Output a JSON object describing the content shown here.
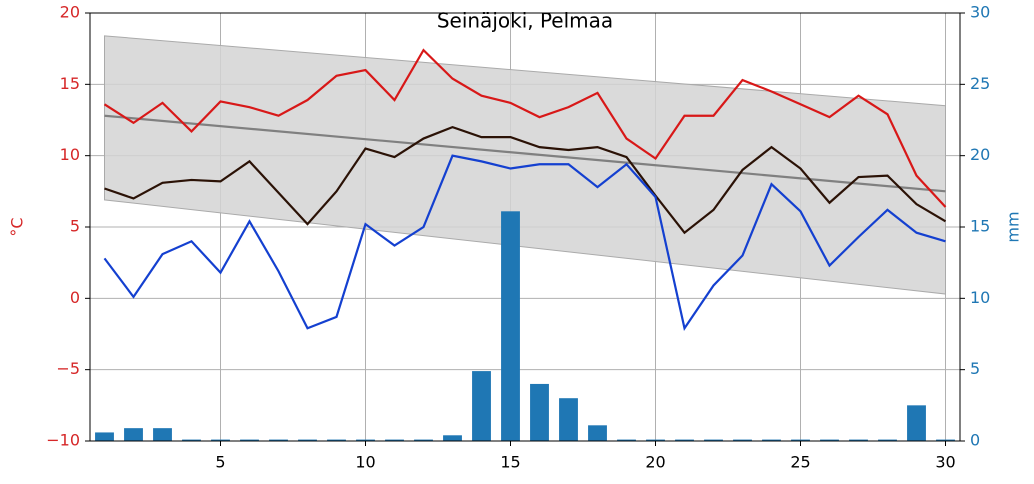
{
  "chart_data": {
    "type": "combo",
    "title": "Seinäjoki, Pelmaa",
    "ylabel": "°C",
    "y2label": "mm",
    "ylabel_color": "#d62728",
    "y2label_color": "#1f77b4",
    "xlim": [
      0.5,
      30.5
    ],
    "xticks": [
      5,
      10,
      15,
      20,
      25,
      30
    ],
    "ylim": [
      -10,
      20
    ],
    "yticks": [
      {
        "value": -10,
        "label": "−10"
      },
      {
        "value": -5,
        "label": "−5"
      },
      0,
      5,
      10,
      15,
      20
    ],
    "y2lim": [
      0,
      30
    ],
    "y2ticks": [
      0,
      5,
      10,
      15,
      20,
      25,
      30
    ],
    "grid": true,
    "x": [
      1,
      2,
      3,
      4,
      5,
      6,
      7,
      8,
      9,
      10,
      11,
      12,
      13,
      14,
      15,
      16,
      17,
      18,
      19,
      20,
      21,
      22,
      23,
      24,
      25,
      26,
      27,
      28,
      29,
      30
    ],
    "series": [
      {
        "type": "band",
        "x": [
          1,
          30
        ],
        "upper": [
          18.4,
          13.5
        ],
        "lower": [
          6.9,
          0.3
        ],
        "color": "#d3d3d3"
      },
      {
        "type": "line",
        "x": [
          1,
          30
        ],
        "values": [
          12.8,
          7.5
        ],
        "color": "#808080"
      },
      {
        "type": "bar",
        "axis": "y2",
        "color": "#1f77b4",
        "values": [
          0.6,
          0.9,
          0.9,
          0.1,
          0.1,
          0.1,
          0.1,
          0.1,
          0.1,
          0.1,
          0.1,
          0.1,
          0.4,
          4.9,
          16.1,
          4.0,
          3.0,
          1.1,
          0.1,
          0.1,
          0.1,
          0.1,
          0.1,
          0.1,
          0.1,
          0.1,
          0.1,
          0.1,
          2.5,
          0.1
        ]
      },
      {
        "type": "line",
        "color": "#d81818",
        "values": [
          13.6,
          12.3,
          13.7,
          11.7,
          13.8,
          13.4,
          12.8,
          13.9,
          15.6,
          16.0,
          13.9,
          17.4,
          15.4,
          14.2,
          13.7,
          12.7,
          13.4,
          14.4,
          11.2,
          9.8,
          12.8,
          12.8,
          15.3,
          14.5,
          13.6,
          12.7,
          14.2,
          12.9,
          8.6,
          6.4
        ]
      },
      {
        "type": "line",
        "color": "#2b1206",
        "values": [
          7.7,
          7.0,
          8.1,
          8.3,
          8.2,
          9.6,
          7.4,
          5.2,
          7.5,
          10.5,
          9.9,
          11.2,
          12.0,
          11.3,
          11.3,
          10.6,
          10.4,
          10.6,
          9.9,
          7.2,
          4.6,
          6.2,
          9.0,
          10.6,
          9.1,
          6.7,
          8.5,
          8.6,
          6.6,
          5.4
        ]
      },
      {
        "type": "line",
        "color": "#1440d0",
        "values": [
          2.8,
          0.1,
          3.1,
          4.0,
          1.8,
          5.4,
          1.9,
          -2.1,
          -1.3,
          5.2,
          3.7,
          5.0,
          10.0,
          9.6,
          9.1,
          9.4,
          9.4,
          7.8,
          9.4,
          7.1,
          -2.1,
          0.9,
          3.0,
          8.0,
          6.1,
          2.3,
          4.3,
          6.2,
          4.6,
          4.0
        ]
      }
    ]
  }
}
